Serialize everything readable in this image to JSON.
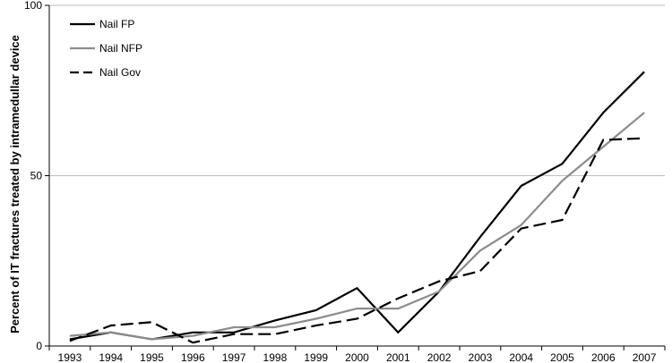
{
  "chart_data": {
    "type": "line",
    "title": "",
    "xlabel": "",
    "ylabel": "Percent of IT fractures treated by intramedullar device",
    "categories": [
      "1993",
      "1994",
      "1995",
      "1996",
      "1997",
      "1998",
      "1999",
      "2000",
      "2001",
      "2002",
      "2003",
      "2004",
      "2005",
      "2006",
      "2007"
    ],
    "ylim": [
      0,
      100
    ],
    "yticks": [
      0,
      50,
      100
    ],
    "grid": "horizontal",
    "legend_position": "top-left",
    "series": [
      {
        "name": "Nail FP",
        "color": "#000000",
        "style": "solid",
        "values": [
          2.0,
          4.0,
          2.0,
          4.0,
          4.0,
          7.5,
          10.5,
          17.0,
          4.0,
          16.0,
          32.0,
          47.0,
          53.5,
          68.5,
          80.5
        ]
      },
      {
        "name": "Nail NFP",
        "color": "#8c8c8c",
        "style": "solid",
        "values": [
          3.0,
          4.0,
          2.0,
          3.0,
          5.5,
          5.5,
          8.0,
          11.0,
          11.0,
          16.0,
          28.0,
          35.5,
          48.5,
          58.5,
          68.5
        ]
      },
      {
        "name": "Nail Gov",
        "color": "#000000",
        "style": "dashed",
        "values": [
          1.5,
          6.0,
          7.0,
          1.0,
          3.5,
          3.5,
          6.0,
          8.0,
          14.0,
          19.0,
          22.0,
          34.5,
          37.0,
          60.5,
          61.0
        ]
      }
    ]
  }
}
